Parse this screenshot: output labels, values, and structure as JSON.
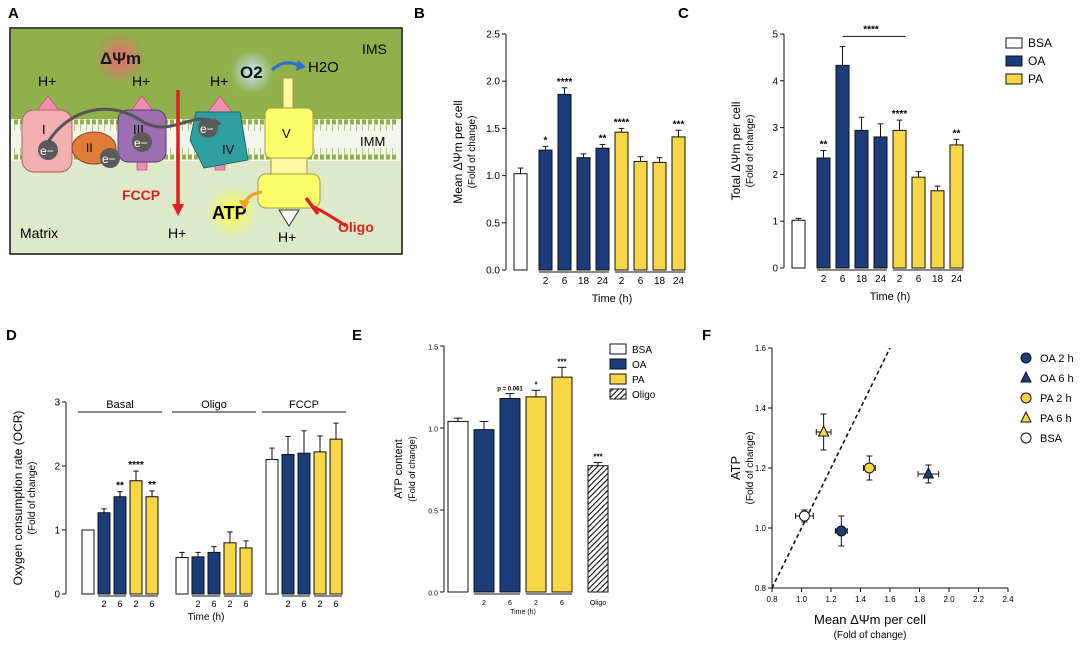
{
  "colors": {
    "bsa": "#ffffff",
    "oa": "#1c3d7a",
    "pa": "#f7d745",
    "outline": "#111111",
    "membrane": "#8fb04a",
    "matrix": "#dde9c8",
    "red": "#e02020"
  },
  "panelA": {
    "letter": "A",
    "ims": "IMS",
    "imm": "IMM",
    "matrix": "Matrix",
    "dpsi": "ΔΨm",
    "o2": "O2",
    "h2o": "H2O",
    "fccp": "FCCP",
    "atp": "ATP",
    "oligo": "Oligo",
    "hplus": "H+",
    "eminus": "e−",
    "complexes": [
      "I",
      "II",
      "III",
      "IV",
      "V"
    ]
  },
  "chart_data": [
    {
      "panel": "B",
      "type": "bar",
      "ylabel": "Mean ΔΨm per cell",
      "ylabel2": "(Fold of change)",
      "xlabel": "Time (h)",
      "ylim": [
        0,
        2.5
      ],
      "yticks": [
        "0.0",
        "0.5",
        "1.0",
        "1.5",
        "2.0",
        "2.5"
      ],
      "bars": [
        {
          "group": "BSA",
          "label": "",
          "value": 1.02,
          "err": 0.06,
          "sig": ""
        },
        {
          "group": "OA",
          "label": "2",
          "value": 1.27,
          "err": 0.04,
          "sig": "*"
        },
        {
          "group": "OA",
          "label": "6",
          "value": 1.86,
          "err": 0.07,
          "sig": "****"
        },
        {
          "group": "OA",
          "label": "18",
          "value": 1.19,
          "err": 0.04,
          "sig": ""
        },
        {
          "group": "OA",
          "label": "24",
          "value": 1.29,
          "err": 0.04,
          "sig": "**"
        },
        {
          "group": "PA",
          "label": "2",
          "value": 1.46,
          "err": 0.04,
          "sig": "****"
        },
        {
          "group": "PA",
          "label": "6",
          "value": 1.15,
          "err": 0.05,
          "sig": ""
        },
        {
          "group": "PA",
          "label": "18",
          "value": 1.14,
          "err": 0.05,
          "sig": ""
        },
        {
          "group": "PA",
          "label": "24",
          "value": 1.41,
          "err": 0.07,
          "sig": "***"
        }
      ]
    },
    {
      "panel": "C",
      "type": "bar",
      "ylabel": "Total ΔΨm per cell",
      "ylabel2": "(Fold of change)",
      "xlabel": "Time (h)",
      "ylim": [
        0,
        5
      ],
      "yticks": [
        "0",
        "1",
        "2",
        "3",
        "4",
        "5"
      ],
      "bracket_sig": "****",
      "bars": [
        {
          "group": "BSA",
          "label": "",
          "value": 1.02,
          "err": 0.04,
          "sig": ""
        },
        {
          "group": "OA",
          "label": "2",
          "value": 2.35,
          "err": 0.16,
          "sig": "**"
        },
        {
          "group": "OA",
          "label": "6",
          "value": 4.33,
          "err": 0.4,
          "sig": ""
        },
        {
          "group": "OA",
          "label": "18",
          "value": 2.94,
          "err": 0.28,
          "sig": ""
        },
        {
          "group": "OA",
          "label": "24",
          "value": 2.8,
          "err": 0.28,
          "sig": ""
        },
        {
          "group": "PA",
          "label": "2",
          "value": 2.94,
          "err": 0.22,
          "sig": "****"
        },
        {
          "group": "PA",
          "label": "6",
          "value": 1.94,
          "err": 0.12,
          "sig": ""
        },
        {
          "group": "PA",
          "label": "18",
          "value": 1.65,
          "err": 0.1,
          "sig": ""
        },
        {
          "group": "PA",
          "label": "24",
          "value": 2.63,
          "err": 0.12,
          "sig": "**"
        }
      ],
      "legend": [
        "BSA",
        "OA",
        "PA"
      ]
    },
    {
      "panel": "D",
      "type": "bar",
      "ylabel": "Oxygen consumption rate (OCR)",
      "ylabel2": "(Fold of change)",
      "xlabel": "Time (h)",
      "ylim": [
        0,
        3
      ],
      "yticks": [
        "0",
        "1",
        "2",
        "3"
      ],
      "groups": [
        {
          "name": "Basal",
          "bars": [
            {
              "group": "BSA",
              "label": "",
              "value": 1.0,
              "err": 0,
              "sig": ""
            },
            {
              "group": "OA",
              "label": "2",
              "value": 1.27,
              "err": 0.06,
              "sig": ""
            },
            {
              "group": "OA",
              "label": "6",
              "value": 1.52,
              "err": 0.08,
              "sig": "**"
            },
            {
              "group": "PA",
              "label": "2",
              "value": 1.77,
              "err": 0.15,
              "sig": "****"
            },
            {
              "group": "PA",
              "label": "6",
              "value": 1.52,
              "err": 0.09,
              "sig": "**"
            }
          ]
        },
        {
          "name": "Oligo",
          "bars": [
            {
              "group": "BSA",
              "label": "",
              "value": 0.57,
              "err": 0.08,
              "sig": ""
            },
            {
              "group": "OA",
              "label": "2",
              "value": 0.58,
              "err": 0.07,
              "sig": ""
            },
            {
              "group": "OA",
              "label": "6",
              "value": 0.65,
              "err": 0.09,
              "sig": ""
            },
            {
              "group": "PA",
              "label": "2",
              "value": 0.8,
              "err": 0.17,
              "sig": ""
            },
            {
              "group": "PA",
              "label": "6",
              "value": 0.72,
              "err": 0.11,
              "sig": ""
            }
          ]
        },
        {
          "name": "FCCP",
          "bars": [
            {
              "group": "BSA",
              "label": "",
              "value": 2.1,
              "err": 0.18,
              "sig": ""
            },
            {
              "group": "OA",
              "label": "2",
              "value": 2.18,
              "err": 0.28,
              "sig": ""
            },
            {
              "group": "OA",
              "label": "6",
              "value": 2.2,
              "err": 0.35,
              "sig": ""
            },
            {
              "group": "PA",
              "label": "2",
              "value": 2.22,
              "err": 0.25,
              "sig": ""
            },
            {
              "group": "PA",
              "label": "6",
              "value": 2.42,
              "err": 0.25,
              "sig": ""
            }
          ]
        }
      ]
    },
    {
      "panel": "E",
      "type": "bar",
      "ylabel": "ATP content",
      "ylabel2": "(Fold of change)",
      "xlabel": "Time (h)",
      "ylim": [
        0,
        1.5
      ],
      "yticks": [
        "0.0",
        "0.5",
        "1.0",
        "1.5"
      ],
      "annotation": "p = 0.061",
      "bars": [
        {
          "group": "BSA",
          "label": "",
          "value": 1.04,
          "err": 0.02,
          "sig": ""
        },
        {
          "group": "OA",
          "label": "2",
          "value": 0.99,
          "err": 0.05,
          "sig": ""
        },
        {
          "group": "OA",
          "label": "6",
          "value": 1.18,
          "err": 0.03,
          "sig": "p = 0.061"
        },
        {
          "group": "PA",
          "label": "2",
          "value": 1.19,
          "err": 0.04,
          "sig": "*"
        },
        {
          "group": "PA",
          "label": "6",
          "value": 1.31,
          "err": 0.06,
          "sig": "***"
        },
        {
          "group": "Oligo",
          "label": "Oligo",
          "value": 0.77,
          "err": 0.02,
          "sig": "***"
        }
      ],
      "legend": [
        "BSA",
        "OA",
        "PA",
        "Oligo"
      ]
    },
    {
      "panel": "F",
      "type": "scatter",
      "xlabel": "Mean ΔΨm per cell",
      "xlabel2": "(Fold of change)",
      "ylabel": "ATP",
      "ylabel2": "(Fold of change)",
      "xlim": [
        0.8,
        2.4
      ],
      "ylim": [
        0.8,
        1.6
      ],
      "xticks": [
        "0.8",
        "1.0",
        "1.2",
        "1.4",
        "1.6",
        "1.8",
        "2.0",
        "2.2",
        "2.4"
      ],
      "yticks": [
        "0.8",
        "1.0",
        "1.2",
        "1.4",
        "1.6"
      ],
      "identity_line": true,
      "points": [
        {
          "name": "OA 2 h",
          "x": 1.27,
          "y": 0.99,
          "xerr": 0.04,
          "yerr": 0.05,
          "marker": "circle",
          "group": "OA"
        },
        {
          "name": "OA 6 h",
          "x": 1.86,
          "y": 1.18,
          "xerr": 0.07,
          "yerr": 0.03,
          "marker": "triangle",
          "group": "OA"
        },
        {
          "name": "PA 2 h",
          "x": 1.46,
          "y": 1.2,
          "xerr": 0.04,
          "yerr": 0.04,
          "marker": "circle",
          "group": "PA"
        },
        {
          "name": "PA 6 h",
          "x": 1.15,
          "y": 1.32,
          "xerr": 0.05,
          "yerr": 0.06,
          "marker": "triangle",
          "group": "PA"
        },
        {
          "name": "BSA",
          "x": 1.02,
          "y": 1.04,
          "xerr": 0.06,
          "yerr": 0.02,
          "marker": "circle",
          "group": "BSA"
        }
      ]
    }
  ]
}
